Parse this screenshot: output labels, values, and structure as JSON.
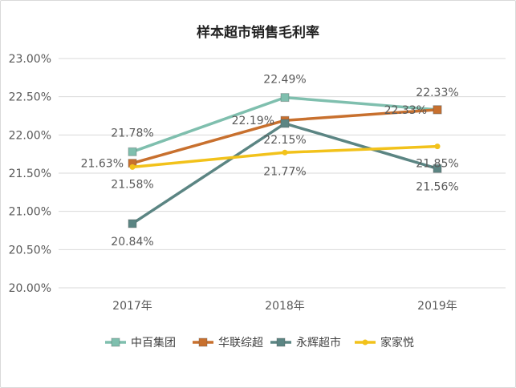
{
  "chart_data": {
    "type": "line",
    "title": "样本超市销售毛利率",
    "categories": [
      "2017年",
      "2018年",
      "2019年"
    ],
    "y_ticks": [
      "20.00%",
      "20.50%",
      "21.00%",
      "21.50%",
      "22.00%",
      "22.50%",
      "23.00%"
    ],
    "ylim": [
      20.0,
      23.0
    ],
    "grid": true,
    "legend_position": "bottom",
    "series": [
      {
        "name": "中百集团",
        "color": "#7fbfae",
        "marker": "square",
        "values": [
          21.78,
          22.49,
          22.33
        ],
        "labels": [
          "21.78%",
          "22.49%",
          "22.33%"
        ]
      },
      {
        "name": "华联综超",
        "color": "#c8702e",
        "marker": "square",
        "values": [
          21.63,
          22.19,
          22.33
        ],
        "labels": [
          "21.63%",
          "22.19%",
          "22.33%"
        ]
      },
      {
        "name": "永辉超市",
        "color": "#5b8583",
        "marker": "square",
        "values": [
          20.84,
          22.15,
          21.56
        ],
        "labels": [
          "20.84%",
          "22.15%",
          "21.56%"
        ]
      },
      {
        "name": "家家悦",
        "color": "#f2c21b",
        "marker": "circle",
        "values": [
          21.58,
          21.77,
          21.85
        ],
        "labels": [
          "21.58%",
          "21.77%",
          "21.85%"
        ]
      }
    ]
  }
}
